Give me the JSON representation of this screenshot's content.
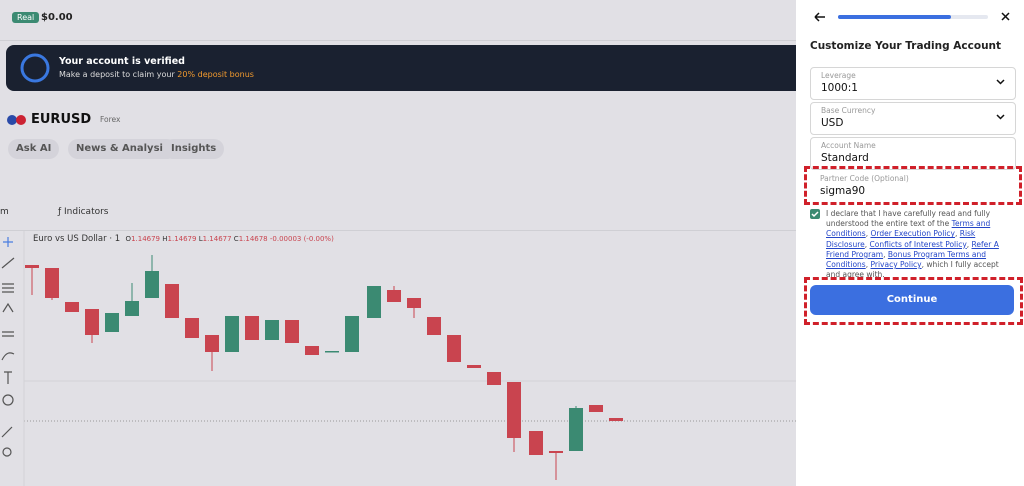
{
  "header": {
    "badge": "Real",
    "balance": "$0.00"
  },
  "banner": {
    "title": "Your account is verified",
    "text": "Make a deposit to claim your ",
    "highlight": "20% deposit bonus"
  },
  "symbol": {
    "name": "EURUSD",
    "market": "Forex"
  },
  "tabs": [
    "Ask AI",
    "News & Analysis",
    "Insights"
  ],
  "toolbar": {
    "interval": "m",
    "indicators": "Indicators"
  },
  "legend": {
    "name": "Euro vs US Dollar · 1",
    "o_label": "O",
    "o": "1.14679",
    "h_label": "H",
    "h": "1.14679",
    "l_label": "L",
    "l": "1.14677",
    "c_label": "C",
    "c": "1.14678",
    "change": "-0.00003 (-0.00%)"
  },
  "panel": {
    "title": "Customize Your Trading Account",
    "fields": [
      {
        "label": "Leverage",
        "value": "1000:1",
        "select": true
      },
      {
        "label": "Base Currency",
        "value": "USD",
        "select": true
      },
      {
        "label": "Account Name",
        "value": "Standard",
        "select": false
      },
      {
        "label": "Partner Code (Optional)",
        "value": "sigma90",
        "select": false
      }
    ],
    "declaration": [
      {
        "text": "I declare that I have carefully read and fully understood the entire text of the ",
        "link": false
      },
      {
        "text": "Terms and Conditions",
        "link": true
      },
      {
        "text": ", ",
        "link": false
      },
      {
        "text": "Order Execution Policy",
        "link": true
      },
      {
        "text": ", ",
        "link": false
      },
      {
        "text": "Risk Disclosure",
        "link": true
      },
      {
        "text": ", ",
        "link": false
      },
      {
        "text": "Conflicts of Interest Policy",
        "link": true
      },
      {
        "text": ", ",
        "link": false
      },
      {
        "text": "Refer A Friend Program",
        "link": true
      },
      {
        "text": ", ",
        "link": false
      },
      {
        "text": "Bonus Program Terms and Conditions",
        "link": true
      },
      {
        "text": ", ",
        "link": false
      },
      {
        "text": "Privacy Policy",
        "link": true
      },
      {
        "text": ", which I fully accept and agree with.",
        "link": false
      }
    ],
    "button": "Continue"
  }
}
